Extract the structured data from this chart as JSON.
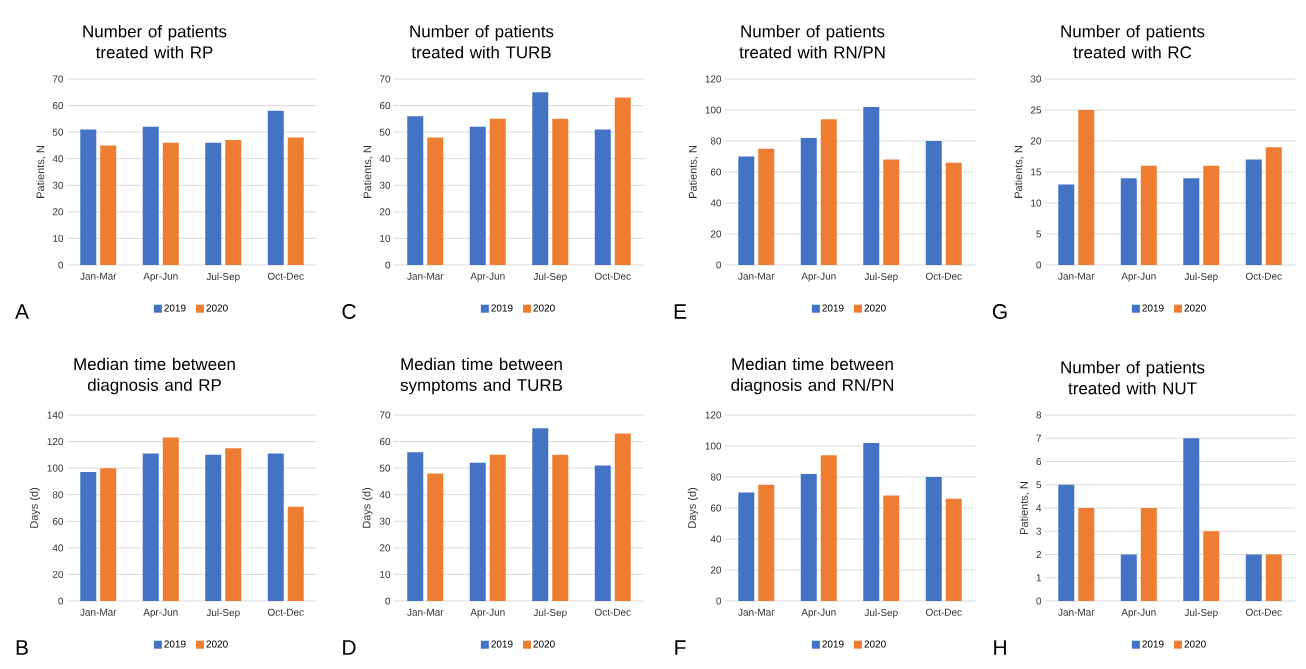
{
  "chart_data": [
    {
      "type": "bar",
      "title": "Number of patients treated with RP",
      "ylabel": "Patients, N",
      "categories": [
        "Jan-Mar",
        "Apr-Jun",
        "Jul-Sep",
        "Oct-Dec"
      ],
      "series": [
        {
          "name": "2019",
          "color": "#4472c4",
          "values": [
            51,
            52,
            46,
            58
          ]
        },
        {
          "name": "2020",
          "color": "#ed7d31",
          "values": [
            45,
            46,
            47,
            48
          ]
        }
      ],
      "ylim": [
        0,
        70
      ],
      "yticks": [
        0,
        10,
        20,
        30,
        40,
        50,
        60,
        70
      ],
      "grid": "y",
      "legend": "bottom",
      "annotations": [
        "A"
      ]
    },
    {
      "type": "bar",
      "title": "Number of patients treated with TURB",
      "ylabel": "Patients, N",
      "categories": [
        "Jan-Mar",
        "Apr-Jun",
        "Jul-Sep",
        "Oct-Dec"
      ],
      "series": [
        {
          "name": "2019",
          "color": "#4472c4",
          "values": [
            56,
            52,
            65,
            51
          ]
        },
        {
          "name": "2020",
          "color": "#ed7d31",
          "values": [
            48,
            55,
            55,
            63
          ]
        }
      ],
      "ylim": [
        0,
        70
      ],
      "yticks": [
        0,
        10,
        20,
        30,
        40,
        50,
        60,
        70
      ],
      "grid": "y",
      "legend": "bottom",
      "annotations": [
        "C"
      ]
    },
    {
      "type": "bar",
      "title": "Number of patients treated with RN/PN",
      "ylabel": "Patients, N",
      "categories": [
        "Jan-Mar",
        "Apr-Jun",
        "Jul-Sep",
        "Oct-Dec"
      ],
      "series": [
        {
          "name": "2019",
          "color": "#4472c4",
          "values": [
            70,
            82,
            102,
            80
          ]
        },
        {
          "name": "2020",
          "color": "#ed7d31",
          "values": [
            75,
            94,
            68,
            66
          ]
        }
      ],
      "ylim": [
        0,
        120
      ],
      "yticks": [
        0,
        20,
        40,
        60,
        80,
        100,
        120
      ],
      "grid": "y",
      "legend": "bottom",
      "annotations": [
        "E"
      ]
    },
    {
      "type": "bar",
      "title": "Number of patients treated with RC",
      "ylabel": "Patients, N",
      "categories": [
        "Jan-Mar",
        "Apr-Jun",
        "Jul-Sep",
        "Oct-Dec"
      ],
      "series": [
        {
          "name": "2019",
          "color": "#4472c4",
          "values": [
            13,
            14,
            14,
            17
          ]
        },
        {
          "name": "2020",
          "color": "#ed7d31",
          "values": [
            25,
            16,
            16,
            19
          ]
        }
      ],
      "ylim": [
        0,
        30
      ],
      "yticks": [
        0,
        5,
        10,
        15,
        20,
        25,
        30
      ],
      "grid": "y",
      "legend": "bottom",
      "annotations": [
        "G"
      ]
    },
    {
      "type": "bar",
      "title": "Median time between diagnosis and RP",
      "ylabel": "Days (d)",
      "categories": [
        "Jan-Mar",
        "Apr-Jun",
        "Jul-Sep",
        "Oct-Dec"
      ],
      "series": [
        {
          "name": "2019",
          "color": "#4472c4",
          "values": [
            97,
            111,
            110,
            111
          ]
        },
        {
          "name": "2020",
          "color": "#ed7d31",
          "values": [
            100,
            123,
            115,
            71
          ]
        }
      ],
      "ylim": [
        0,
        140
      ],
      "yticks": [
        0,
        20,
        40,
        60,
        80,
        100,
        120,
        140
      ],
      "grid": "y",
      "legend": "bottom",
      "annotations": [
        "B"
      ]
    },
    {
      "type": "bar",
      "title": "Median time between symptoms and TURB",
      "ylabel": "Days (d)",
      "categories": [
        "Jan-Mar",
        "Apr-Jun",
        "Jul-Sep",
        "Oct-Dec"
      ],
      "series": [
        {
          "name": "2019",
          "color": "#4472c4",
          "values": [
            56,
            52,
            65,
            51
          ]
        },
        {
          "name": "2020",
          "color": "#ed7d31",
          "values": [
            48,
            55,
            55,
            63
          ]
        }
      ],
      "ylim": [
        0,
        70
      ],
      "yticks": [
        0,
        10,
        20,
        30,
        40,
        50,
        60,
        70
      ],
      "grid": "y",
      "legend": "bottom",
      "annotations": [
        "D"
      ]
    },
    {
      "type": "bar",
      "title": "Median time between diagnosis and RN/PN",
      "ylabel": "Days (d)",
      "categories": [
        "Jan-Mar",
        "Apr-Jun",
        "Jul-Sep",
        "Oct-Dec"
      ],
      "series": [
        {
          "name": "2019",
          "color": "#4472c4",
          "values": [
            70,
            82,
            102,
            80
          ]
        },
        {
          "name": "2020",
          "color": "#ed7d31",
          "values": [
            75,
            94,
            68,
            66
          ]
        }
      ],
      "ylim": [
        0,
        120
      ],
      "yticks": [
        0,
        20,
        40,
        60,
        80,
        100,
        120
      ],
      "grid": "y",
      "legend": "bottom",
      "annotations": [
        "F"
      ]
    },
    {
      "type": "bar",
      "title": "Number of patients treated with NUT",
      "ylabel": "Patients, N",
      "categories": [
        "Jan-Mar",
        "Apr-Jun",
        "Jul-Sep",
        "Oct-Dec"
      ],
      "series": [
        {
          "name": "2019",
          "color": "#4472c4",
          "values": [
            5,
            2,
            7,
            2
          ]
        },
        {
          "name": "2020",
          "color": "#ed7d31",
          "values": [
            4,
            4,
            3,
            2
          ]
        }
      ],
      "ylim": [
        0,
        8
      ],
      "yticks": [
        0,
        1,
        2,
        3,
        4,
        5,
        6,
        7,
        8
      ],
      "grid": "y",
      "legend": "bottom",
      "annotations": [
        "H"
      ]
    }
  ]
}
